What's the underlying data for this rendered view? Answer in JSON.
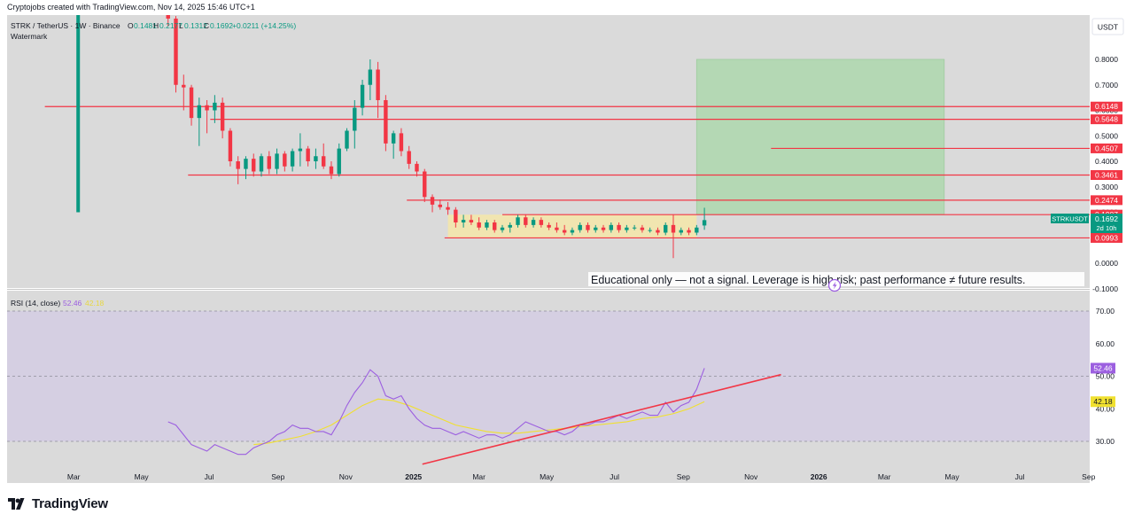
{
  "header": {
    "attribution": "Cryptojobs created with TradingView.com, Nov 14, 2025 15:46 UTC+1"
  },
  "legend": {
    "symbol": "STRK / TetherUS · 1W · Binance",
    "o_label": "O",
    "o_value": "0.1481",
    "h_label": "H",
    "h_value": "0.2177",
    "l_label": "L",
    "l_value": "0.1312",
    "c_label": "C",
    "c_value": "0.1692",
    "change": "+0.0211 (+14.25%)",
    "watermark": "Watermark"
  },
  "currency_button": "USDT",
  "disclaimer": "Educational only — not a signal. Leverage is high risk; past performance ≠ future results.",
  "rsi_legend": {
    "label": "RSI (14, close)",
    "rsi_value": "52.46",
    "ma_value": "42.18"
  },
  "ticker_badge": {
    "symbol": "STRKUSDT",
    "price": "0.1692",
    "countdown": "2d 10h"
  },
  "brand": "TradingView",
  "colors": {
    "up": "#089981",
    "down": "#f23645",
    "level_line": "#f23645",
    "rsi_line": "#9c5fe0",
    "rsi_ma": "#f0e030",
    "trendline": "#f23645",
    "consolidation_box": "#f5e6a8",
    "target_zone": "#a8d8a8"
  },
  "chart_data": [
    {
      "type": "candlestick",
      "title": "STRK / TetherUS · 1W · Binance",
      "y_axis_labels": [
        "0.8000",
        "0.7000",
        "0.6000",
        "0.5000",
        "0.4000",
        "0.3000",
        "0.2000",
        "0.1000",
        "0.0000",
        "-0.1000"
      ],
      "x_axis_labels": [
        "Mar",
        "May",
        "Jul",
        "Sep",
        "Nov",
        "2025",
        "Mar",
        "May",
        "Jul",
        "Sep",
        "Nov",
        "2026",
        "Mar",
        "May",
        "Jul",
        "Sep"
      ],
      "ylim": [
        -0.11,
        0.98
      ],
      "x_range_days": [
        0,
        975
      ],
      "x_ticks": [
        {
          "label": "Mar",
          "day": 60
        },
        {
          "label": "May",
          "day": 121
        },
        {
          "label": "Jul",
          "day": 182
        },
        {
          "label": "Sep",
          "day": 244
        },
        {
          "label": "Nov",
          "day": 305
        },
        {
          "label": "2025",
          "day": 366
        },
        {
          "label": "Mar",
          "day": 425
        },
        {
          "label": "May",
          "day": 486
        },
        {
          "label": "Jul",
          "day": 547
        },
        {
          "label": "Sep",
          "day": 609
        },
        {
          "label": "Nov",
          "day": 670
        },
        {
          "label": "2026",
          "day": 731
        },
        {
          "label": "Mar",
          "day": 790
        },
        {
          "label": "May",
          "day": 851
        },
        {
          "label": "Jul",
          "day": 912
        },
        {
          "label": "Sep",
          "day": 974
        }
      ],
      "levels": [
        {
          "price": 0.6148,
          "label": "0.6148",
          "from_day": 34
        },
        {
          "price": 0.5648,
          "label": "0.5648",
          "from_day": 183
        },
        {
          "price": 0.4507,
          "label": "0.4507",
          "from_day": 688
        },
        {
          "price": 0.3461,
          "label": "0.3461",
          "from_day": 163
        },
        {
          "price": 0.2474,
          "label": "0.2474",
          "from_day": 360
        },
        {
          "price": 0.1907,
          "label": "0.1907",
          "from_day": 446
        },
        {
          "price": 0.0993,
          "label": "0.0993",
          "from_day": 394
        }
      ],
      "consolidation_box": {
        "from_day": 397,
        "to_day": 621,
        "top": 0.1907,
        "bottom": 0.0993
      },
      "target_zone": {
        "from_day": 621,
        "to_day": 844,
        "top": 0.8,
        "bottom": 0.1907
      },
      "early_bar": {
        "day": 64,
        "top": 0.98,
        "bottom": 0.2
      },
      "candles": [
        {
          "d": 145,
          "o": 0.98,
          "h": 1.0,
          "l": 0.93,
          "c": 0.96
        },
        {
          "d": 152,
          "o": 0.96,
          "h": 0.97,
          "l": 0.67,
          "c": 0.7
        },
        {
          "d": 159,
          "o": 0.7,
          "h": 0.74,
          "l": 0.6,
          "c": 0.69
        },
        {
          "d": 166,
          "o": 0.69,
          "h": 0.7,
          "l": 0.54,
          "c": 0.57
        },
        {
          "d": 173,
          "o": 0.57,
          "h": 0.65,
          "l": 0.46,
          "c": 0.62
        },
        {
          "d": 180,
          "o": 0.62,
          "h": 0.64,
          "l": 0.51,
          "c": 0.6
        },
        {
          "d": 187,
          "o": 0.6,
          "h": 0.66,
          "l": 0.55,
          "c": 0.63
        },
        {
          "d": 194,
          "o": 0.63,
          "h": 0.65,
          "l": 0.49,
          "c": 0.52
        },
        {
          "d": 201,
          "o": 0.52,
          "h": 0.53,
          "l": 0.38,
          "c": 0.4
        },
        {
          "d": 208,
          "o": 0.4,
          "h": 0.42,
          "l": 0.31,
          "c": 0.37
        },
        {
          "d": 215,
          "o": 0.37,
          "h": 0.42,
          "l": 0.33,
          "c": 0.41
        },
        {
          "d": 222,
          "o": 0.41,
          "h": 0.43,
          "l": 0.34,
          "c": 0.36
        },
        {
          "d": 229,
          "o": 0.36,
          "h": 0.43,
          "l": 0.34,
          "c": 0.42
        },
        {
          "d": 236,
          "o": 0.42,
          "h": 0.44,
          "l": 0.35,
          "c": 0.37
        },
        {
          "d": 243,
          "o": 0.37,
          "h": 0.45,
          "l": 0.35,
          "c": 0.43
        },
        {
          "d": 250,
          "o": 0.43,
          "h": 0.44,
          "l": 0.36,
          "c": 0.38
        },
        {
          "d": 257,
          "o": 0.38,
          "h": 0.45,
          "l": 0.36,
          "c": 0.44
        },
        {
          "d": 264,
          "o": 0.44,
          "h": 0.51,
          "l": 0.38,
          "c": 0.45
        },
        {
          "d": 271,
          "o": 0.45,
          "h": 0.46,
          "l": 0.38,
          "c": 0.4
        },
        {
          "d": 278,
          "o": 0.4,
          "h": 0.45,
          "l": 0.37,
          "c": 0.42
        },
        {
          "d": 285,
          "o": 0.42,
          "h": 0.47,
          "l": 0.37,
          "c": 0.38
        },
        {
          "d": 292,
          "o": 0.38,
          "h": 0.4,
          "l": 0.33,
          "c": 0.35
        },
        {
          "d": 299,
          "o": 0.35,
          "h": 0.47,
          "l": 0.34,
          "c": 0.45
        },
        {
          "d": 306,
          "o": 0.45,
          "h": 0.53,
          "l": 0.44,
          "c": 0.52
        },
        {
          "d": 313,
          "o": 0.52,
          "h": 0.64,
          "l": 0.45,
          "c": 0.61
        },
        {
          "d": 320,
          "o": 0.61,
          "h": 0.72,
          "l": 0.58,
          "c": 0.7
        },
        {
          "d": 327,
          "o": 0.7,
          "h": 0.8,
          "l": 0.64,
          "c": 0.76
        },
        {
          "d": 334,
          "o": 0.76,
          "h": 0.79,
          "l": 0.57,
          "c": 0.64
        },
        {
          "d": 341,
          "o": 0.64,
          "h": 0.66,
          "l": 0.44,
          "c": 0.47
        },
        {
          "d": 348,
          "o": 0.47,
          "h": 0.52,
          "l": 0.41,
          "c": 0.51
        },
        {
          "d": 355,
          "o": 0.51,
          "h": 0.53,
          "l": 0.42,
          "c": 0.44
        },
        {
          "d": 362,
          "o": 0.44,
          "h": 0.46,
          "l": 0.37,
          "c": 0.39
        },
        {
          "d": 369,
          "o": 0.39,
          "h": 0.4,
          "l": 0.34,
          "c": 0.36
        },
        {
          "d": 376,
          "o": 0.36,
          "h": 0.37,
          "l": 0.24,
          "c": 0.26
        },
        {
          "d": 383,
          "o": 0.26,
          "h": 0.27,
          "l": 0.2,
          "c": 0.23
        },
        {
          "d": 390,
          "o": 0.23,
          "h": 0.25,
          "l": 0.21,
          "c": 0.22
        },
        {
          "d": 397,
          "o": 0.22,
          "h": 0.24,
          "l": 0.19,
          "c": 0.21
        },
        {
          "d": 404,
          "o": 0.21,
          "h": 0.22,
          "l": 0.14,
          "c": 0.16
        },
        {
          "d": 411,
          "o": 0.16,
          "h": 0.19,
          "l": 0.14,
          "c": 0.17
        },
        {
          "d": 418,
          "o": 0.17,
          "h": 0.19,
          "l": 0.15,
          "c": 0.16
        },
        {
          "d": 425,
          "o": 0.16,
          "h": 0.18,
          "l": 0.13,
          "c": 0.14
        },
        {
          "d": 432,
          "o": 0.14,
          "h": 0.17,
          "l": 0.13,
          "c": 0.16
        },
        {
          "d": 439,
          "o": 0.16,
          "h": 0.17,
          "l": 0.12,
          "c": 0.13
        },
        {
          "d": 446,
          "o": 0.13,
          "h": 0.15,
          "l": 0.12,
          "c": 0.14
        },
        {
          "d": 453,
          "o": 0.14,
          "h": 0.16,
          "l": 0.12,
          "c": 0.15
        },
        {
          "d": 460,
          "o": 0.15,
          "h": 0.19,
          "l": 0.14,
          "c": 0.18
        },
        {
          "d": 467,
          "o": 0.18,
          "h": 0.19,
          "l": 0.14,
          "c": 0.15
        },
        {
          "d": 474,
          "o": 0.15,
          "h": 0.18,
          "l": 0.14,
          "c": 0.17
        },
        {
          "d": 481,
          "o": 0.17,
          "h": 0.18,
          "l": 0.14,
          "c": 0.15
        },
        {
          "d": 488,
          "o": 0.15,
          "h": 0.16,
          "l": 0.13,
          "c": 0.14
        },
        {
          "d": 495,
          "o": 0.14,
          "h": 0.16,
          "l": 0.12,
          "c": 0.13
        },
        {
          "d": 502,
          "o": 0.13,
          "h": 0.15,
          "l": 0.11,
          "c": 0.12
        },
        {
          "d": 509,
          "o": 0.12,
          "h": 0.14,
          "l": 0.11,
          "c": 0.13
        },
        {
          "d": 516,
          "o": 0.13,
          "h": 0.16,
          "l": 0.12,
          "c": 0.15
        },
        {
          "d": 523,
          "o": 0.15,
          "h": 0.16,
          "l": 0.12,
          "c": 0.13
        },
        {
          "d": 530,
          "o": 0.13,
          "h": 0.15,
          "l": 0.12,
          "c": 0.14
        },
        {
          "d": 537,
          "o": 0.14,
          "h": 0.15,
          "l": 0.12,
          "c": 0.13
        },
        {
          "d": 544,
          "o": 0.13,
          "h": 0.16,
          "l": 0.12,
          "c": 0.15
        },
        {
          "d": 551,
          "o": 0.15,
          "h": 0.16,
          "l": 0.12,
          "c": 0.13
        },
        {
          "d": 558,
          "o": 0.13,
          "h": 0.15,
          "l": 0.12,
          "c": 0.14
        },
        {
          "d": 565,
          "o": 0.14,
          "h": 0.15,
          "l": 0.13,
          "c": 0.14
        },
        {
          "d": 572,
          "o": 0.14,
          "h": 0.15,
          "l": 0.12,
          "c": 0.13
        },
        {
          "d": 579,
          "o": 0.13,
          "h": 0.14,
          "l": 0.12,
          "c": 0.13
        },
        {
          "d": 586,
          "o": 0.13,
          "h": 0.14,
          "l": 0.11,
          "c": 0.12
        },
        {
          "d": 593,
          "o": 0.12,
          "h": 0.16,
          "l": 0.11,
          "c": 0.15
        },
        {
          "d": 600,
          "o": 0.15,
          "h": 0.19,
          "l": 0.02,
          "c": 0.12
        },
        {
          "d": 607,
          "o": 0.12,
          "h": 0.14,
          "l": 0.11,
          "c": 0.13
        },
        {
          "d": 614,
          "o": 0.13,
          "h": 0.14,
          "l": 0.11,
          "c": 0.12
        },
        {
          "d": 621,
          "o": 0.12,
          "h": 0.15,
          "l": 0.11,
          "c": 0.14
        },
        {
          "d": 628,
          "o": 0.1481,
          "h": 0.2177,
          "l": 0.1312,
          "c": 0.1692
        }
      ]
    },
    {
      "type": "line",
      "title": "RSI (14, close)",
      "y_axis_labels": [
        "70.00",
        "60.00",
        "50.00",
        "40.00",
        "30.00"
      ],
      "ylim": [
        25,
        75
      ],
      "bands": [
        70,
        50,
        30
      ],
      "series": [
        {
          "values": [
            [
              145,
              36
            ],
            [
              152,
              35
            ],
            [
              159,
              32
            ],
            [
              166,
              29
            ],
            [
              173,
              28
            ],
            [
              180,
              27
            ],
            [
              187,
              29
            ],
            [
              194,
              28
            ],
            [
              201,
              27
            ],
            [
              208,
              26
            ],
            [
              215,
              26
            ],
            [
              222,
              28
            ],
            [
              229,
              29
            ],
            [
              236,
              30
            ],
            [
              243,
              32
            ],
            [
              250,
              33
            ],
            [
              257,
              35
            ],
            [
              264,
              34
            ],
            [
              271,
              34
            ],
            [
              278,
              33
            ],
            [
              285,
              33
            ],
            [
              292,
              32
            ],
            [
              299,
              36
            ],
            [
              306,
              41
            ],
            [
              313,
              45
            ],
            [
              320,
              48
            ],
            [
              327,
              52
            ],
            [
              334,
              50
            ],
            [
              341,
              44
            ],
            [
              348,
              43
            ],
            [
              355,
              44
            ],
            [
              362,
              40
            ],
            [
              369,
              37
            ],
            [
              376,
              35
            ],
            [
              383,
              34
            ],
            [
              390,
              34
            ],
            [
              397,
              33
            ],
            [
              404,
              32
            ],
            [
              411,
              33
            ],
            [
              418,
              32
            ],
            [
              425,
              31
            ],
            [
              432,
              32
            ],
            [
              439,
              32
            ],
            [
              446,
              31
            ],
            [
              453,
              32
            ],
            [
              460,
              34
            ],
            [
              467,
              36
            ],
            [
              474,
              35
            ],
            [
              481,
              34
            ],
            [
              488,
              33
            ],
            [
              495,
              33
            ],
            [
              502,
              32
            ],
            [
              509,
              33
            ],
            [
              516,
              35
            ],
            [
              523,
              35
            ],
            [
              530,
              36
            ],
            [
              537,
              36
            ],
            [
              544,
              37
            ],
            [
              551,
              38
            ],
            [
              558,
              37
            ],
            [
              565,
              38
            ],
            [
              572,
              39
            ],
            [
              579,
              38
            ],
            [
              586,
              38
            ],
            [
              593,
              42
            ],
            [
              600,
              39
            ],
            [
              607,
              41
            ],
            [
              614,
              42
            ],
            [
              621,
              46
            ],
            [
              628,
              52.46
            ]
          ]
        },
        {
          "values": [
            [
              222,
              29
            ],
            [
              236,
              29.5
            ],
            [
              250,
              30.5
            ],
            [
              264,
              31.5
            ],
            [
              278,
              33
            ],
            [
              292,
              35
            ],
            [
              306,
              38
            ],
            [
              320,
              41
            ],
            [
              334,
              43
            ],
            [
              348,
              42.5
            ],
            [
              362,
              41
            ],
            [
              376,
              39
            ],
            [
              390,
              37
            ],
            [
              404,
              35
            ],
            [
              418,
              34
            ],
            [
              432,
              33
            ],
            [
              446,
              32.5
            ],
            [
              460,
              32.5
            ],
            [
              474,
              33
            ],
            [
              488,
              33.5
            ],
            [
              502,
              34
            ],
            [
              516,
              34.5
            ],
            [
              530,
              35
            ],
            [
              544,
              35.5
            ],
            [
              558,
              36
            ],
            [
              572,
              37
            ],
            [
              586,
              37.5
            ],
            [
              600,
              38.5
            ],
            [
              614,
              40
            ],
            [
              628,
              42.18
            ]
          ]
        }
      ],
      "trendline": [
        [
          374,
          23
        ],
        [
          697,
          50.5
        ]
      ]
    }
  ]
}
